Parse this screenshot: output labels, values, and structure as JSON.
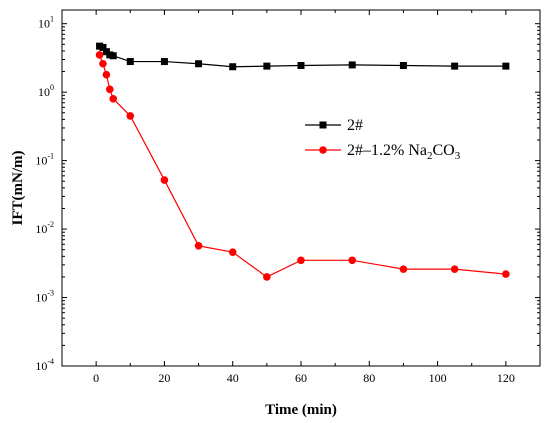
{
  "chart_data": {
    "type": "line",
    "xlabel": "Time (min)",
    "ylabel": "IFT(mN/m)",
    "xlim": [
      -10,
      130
    ],
    "ylim_log10": [
      -4,
      1.2
    ],
    "y_scale": "log",
    "x_ticks": [
      0,
      20,
      40,
      60,
      80,
      100,
      120
    ],
    "x_tick_labels": [
      "0",
      "20",
      "40",
      "60",
      "80",
      "100",
      "120"
    ],
    "y_ticks": [
      -4,
      -3,
      -2,
      -1,
      0,
      1
    ],
    "y_tick_mantissa": "10",
    "y_tick_exponents": [
      "-4",
      "-3",
      "-2",
      "-1",
      "0",
      "1"
    ],
    "legend_position": "center-right",
    "series": [
      {
        "name": "2#",
        "color": "#000000",
        "marker": "square",
        "x": [
          1,
          2,
          3,
          4,
          5,
          10,
          20,
          30,
          40,
          50,
          60,
          75,
          90,
          105,
          120
        ],
        "y": [
          4.7,
          4.5,
          3.9,
          3.5,
          3.4,
          2.8,
          2.8,
          2.6,
          2.35,
          2.4,
          2.45,
          2.5,
          2.45,
          2.4,
          2.4
        ]
      },
      {
        "name": "2#-1.2% Na2CO3",
        "color": "#ff0000",
        "marker": "circle",
        "x": [
          1,
          2,
          3,
          4,
          5,
          10,
          20,
          30,
          40,
          50,
          60,
          75,
          90,
          105,
          120
        ],
        "y": [
          3.5,
          2.6,
          1.8,
          1.1,
          0.8,
          0.45,
          0.052,
          0.0057,
          0.0046,
          0.002,
          0.0035,
          0.0035,
          0.0026,
          0.0026,
          0.0022
        ]
      }
    ],
    "legend_labels": {
      "s1": "2#",
      "s2_prefix": "2#–1.2% Na",
      "s2_sub1": "2",
      "s2_mid": "CO",
      "s2_sub2": "3"
    }
  }
}
